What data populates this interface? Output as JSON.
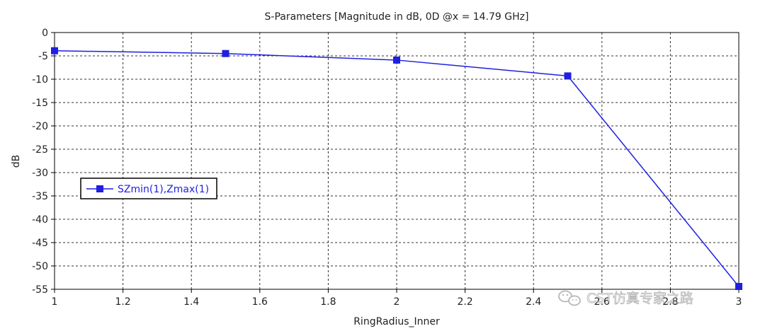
{
  "chart_data": {
    "type": "line",
    "title": "S-Parameters [Magnitude in dB, 0D @x = 14.79 GHz]",
    "xlabel": "RingRadius_Inner",
    "ylabel": "dB",
    "xlim": [
      1,
      3
    ],
    "ylim": [
      -55,
      0
    ],
    "x_ticks": [
      "1",
      "1.2",
      "1.4",
      "1.6",
      "1.8",
      "2",
      "2.2",
      "2.4",
      "2.6",
      "2.8",
      "3"
    ],
    "y_ticks": [
      "0",
      "-5",
      "-10",
      "-15",
      "-20",
      "-25",
      "-30",
      "-35",
      "-40",
      "-45",
      "-50",
      "-55"
    ],
    "grid": true,
    "legend_position": "left",
    "series": [
      {
        "name": "SZmin(1),Zmax(1)",
        "color": "#1f1fe0",
        "marker": "square",
        "x": [
          1,
          1.5,
          2,
          2.5,
          3
        ],
        "y": [
          -3.9,
          -4.5,
          -5.9,
          -9.3,
          -54.4
        ]
      }
    ]
  },
  "watermark": {
    "text": "CST仿真专家之路",
    "icon": "wechat-icon"
  }
}
